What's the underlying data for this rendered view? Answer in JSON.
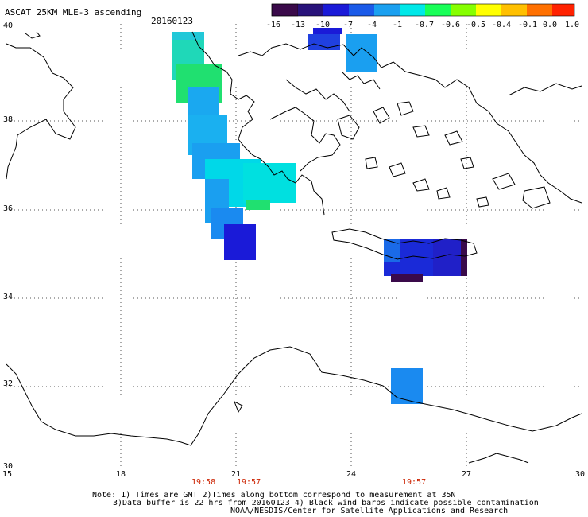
{
  "title": "ASCAT 25KM MLE-3 ascending",
  "date": "20160123",
  "colorbar": {
    "labels": [
      "-16",
      "-13",
      "-10",
      "-7",
      "-4",
      "-1",
      "-0.7",
      "-0.6",
      "-0.5",
      "-0.4",
      "-0.1",
      "0.0",
      "1.0"
    ]
  },
  "axes": {
    "lon_ticks": [
      "15",
      "18",
      "21",
      "24",
      "27",
      "30"
    ],
    "lat_ticks": [
      "40",
      "38",
      "36",
      "34",
      "32",
      "30"
    ]
  },
  "pass_times": [
    "19:58",
    "19:57",
    "19:57"
  ],
  "notes": [
    "Note: 1) Times are GMT 2)Times along bottom correspond to measurement at 35N",
    "3)Data buffer is 22 hrs from 20160123 4) Black wind barbs indicate possible contamination",
    "NOAA/NESDIS/Center for Satellite Applications and Research"
  ],
  "colors": {
    "colorbar_stops": [
      "#3a0a4a",
      "#28127a",
      "#1a1ad8",
      "#1a5ae8",
      "#1aa0f0",
      "#00e8e8",
      "#18ff58",
      "#86ff00",
      "#ffff00",
      "#ffc000",
      "#ff7000",
      "#ff2200"
    ],
    "dark_purple": "#3a0a4a",
    "deep_blue": "#1a1ad8",
    "mid_blue": "#1a6ae8",
    "light_blue": "#1a9ff0",
    "cyan": "#00d8e8",
    "aqua": "#00e8d0",
    "green": "#20e070"
  }
}
